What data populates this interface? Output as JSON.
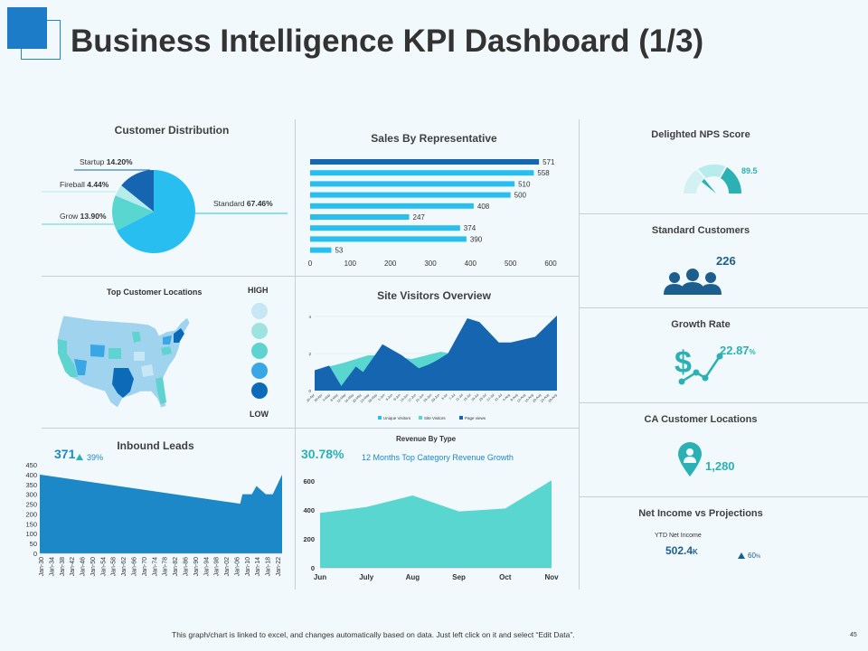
{
  "page": {
    "title": "Business Intelligence KPI Dashboard (1/3)",
    "footer": "This graph/chart is linked to excel, and changes automatically based on data. Just left click on it and select “Edit Data”.",
    "page_number": "45"
  },
  "kpis": {
    "nps": {
      "title": "Delighted NPS Score",
      "value": "89.5",
      "level": 0.895
    },
    "standard_customers": {
      "title": "Standard Customers",
      "value": "226"
    },
    "growth_rate": {
      "title": "Growth Rate",
      "value": "22.87",
      "unit": "%"
    },
    "ca_locations": {
      "title": "CA Customer Locations",
      "value": "1,280"
    },
    "net_income": {
      "title": "Net Income vs Projections",
      "label": "YTD Net Income",
      "value": "502.4",
      "unit": "K",
      "change": "60",
      "change_unit": "%"
    }
  },
  "map": {
    "title": "Top Customer Locations",
    "legend_high": "HIGH",
    "legend_low": "LOW",
    "legend_colors": [
      "#c7e6f6",
      "#9fe3e0",
      "#5fd3cf",
      "#39a6e6",
      "#0b6bb8"
    ]
  },
  "inbound": {
    "value": "371",
    "change": "39%"
  },
  "revenue": {
    "percent": "30.78%",
    "subtitle": "12 Months Top Category Revenue Growth"
  },
  "colors": {
    "dark_blue": "#1565b0",
    "light_blue": "#28bff0",
    "teal": "#5ad6d0",
    "mid_blue": "#1c88c7"
  },
  "chart_data": [
    {
      "type": "pie",
      "title": "Customer Distribution",
      "labels": [
        "Standard",
        "Grow",
        "Fireball",
        "Startup"
      ],
      "values": [
        67.46,
        13.9,
        4.44,
        14.2
      ],
      "value_labels": [
        "67.46%",
        "13.90%",
        "4.44%",
        "14.20%"
      ],
      "colors": [
        "#28bff0",
        "#5ad6d0",
        "#b7ecec",
        "#1565b0"
      ]
    },
    {
      "type": "bar",
      "title": "Sales By Representative",
      "orientation": "horizontal",
      "values": [
        571,
        558,
        510,
        500,
        408,
        247,
        374,
        390,
        53
      ],
      "colors": [
        "#1565b0",
        "#28bff0",
        "#28bff0",
        "#28bff0",
        "#28bff0",
        "#28bff0",
        "#28bff0",
        "#28bff0",
        "#28bff0"
      ],
      "xlim": [
        0,
        600
      ],
      "xticks": [
        0,
        100,
        200,
        300,
        400,
        500,
        600
      ]
    },
    {
      "type": "area",
      "title": "Site Visitors  Overview",
      "ylim": [
        0,
        4
      ],
      "yticks": [
        0,
        2,
        4
      ],
      "x_labels": [
        "26-Apr",
        "30-Apr",
        "4-May",
        "8-May",
        "12-May",
        "16-May",
        "20-May",
        "24-May",
        "28-May",
        "1-Jun",
        "5-Jun",
        "9-Jun",
        "13-Jun",
        "17-Jun",
        "21-Jun",
        "25-Jun",
        "29-Jun",
        "3-Jul",
        "7-Jul",
        "11-Jul",
        "15-Jul",
        "19-Jul",
        "23-Jul",
        "27-Jul",
        "31-Jul",
        "4-Aug",
        "8-Aug",
        "12-Aug",
        "16-Aug",
        "20-Aug",
        "24-Aug",
        "28-Aug"
      ],
      "series": [
        {
          "name": "Unique Visitors",
          "color": "#28bff0",
          "values": [
            [
              0,
              1
            ],
            [
              0.12,
              1.3
            ],
            [
              0.22,
              1.7
            ],
            [
              0.3,
              1.8
            ],
            [
              0.4,
              1.5
            ],
            [
              0.52,
              2
            ],
            [
              0.6,
              1.8
            ],
            [
              0.7,
              1.6
            ],
            [
              0.8,
              1.4
            ],
            [
              0.9,
              1.2
            ],
            [
              1,
              1.1
            ]
          ]
        },
        {
          "name": "Site Visitors",
          "color": "#5ad6d0",
          "values": [
            [
              0,
              1.1
            ],
            [
              0.12,
              1.5
            ],
            [
              0.22,
              1.9
            ],
            [
              0.3,
              1.9
            ],
            [
              0.4,
              1.7
            ],
            [
              0.52,
              2.1
            ],
            [
              0.6,
              1.9
            ],
            [
              0.7,
              1.7
            ],
            [
              0.8,
              1.5
            ],
            [
              0.9,
              1.3
            ],
            [
              1,
              1.2
            ]
          ]
        },
        {
          "name": "Page views",
          "color": "#1565b0",
          "values": [
            [
              0,
              1.1
            ],
            [
              0.06,
              1.35
            ],
            [
              0.11,
              0.25
            ],
            [
              0.17,
              1.3
            ],
            [
              0.2,
              1.0
            ],
            [
              0.28,
              2.5
            ],
            [
              0.36,
              1.9
            ],
            [
              0.43,
              1.2
            ],
            [
              0.47,
              1.4
            ],
            [
              0.5,
              1.6
            ],
            [
              0.55,
              2.0
            ],
            [
              0.63,
              3.9
            ],
            [
              0.68,
              3.7
            ],
            [
              0.76,
              2.6
            ],
            [
              0.81,
              2.6
            ],
            [
              0.91,
              2.9
            ],
            [
              1,
              4.05
            ]
          ]
        }
      ]
    },
    {
      "type": "area",
      "title": "Inbound Leads",
      "ylim": [
        0,
        450
      ],
      "yticks": [
        0,
        50,
        100,
        150,
        200,
        250,
        300,
        350,
        400,
        450
      ],
      "x_labels": [
        "Jan-30",
        "Jan-34",
        "Jan-38",
        "Jan-42",
        "Jan-46",
        "Jan-50",
        "Jan-54",
        "Jan-58",
        "Jan-62",
        "Jan-66",
        "Jan-70",
        "Jan-74",
        "Jan-78",
        "Jan-82",
        "Jan-86",
        "Jan-90",
        "Jan-94",
        "Jan-98",
        "Jan-02",
        "Jan-06",
        "Jan-10",
        "Jan-14",
        "Jan-18",
        "Jan-22"
      ],
      "color": "#1c88c7",
      "points": [
        [
          0,
          400
        ],
        [
          0.86,
          252
        ],
        [
          0.87,
          300
        ],
        [
          0.91,
          300
        ],
        [
          0.93,
          342
        ],
        [
          0.97,
          300
        ],
        [
          1,
          300
        ],
        [
          1.04,
          400
        ]
      ]
    },
    {
      "type": "area",
      "title": "Revenue By Type",
      "categories": [
        "Jun",
        "July",
        "Aug",
        "Sep",
        "Oct",
        "Nov"
      ],
      "values": [
        380,
        420,
        500,
        390,
        410,
        605
      ],
      "ylim": [
        0,
        650
      ],
      "yticks": [
        0,
        200,
        400,
        600
      ],
      "color": "#5ad6d0"
    }
  ]
}
